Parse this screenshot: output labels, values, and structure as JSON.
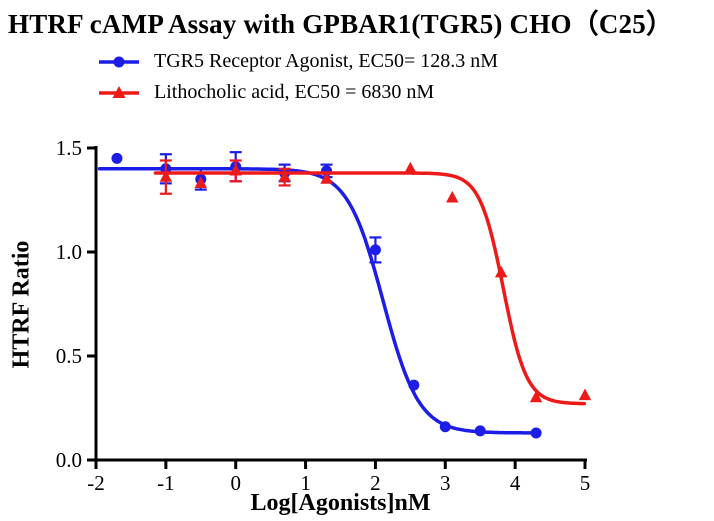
{
  "title": "HTRF cAMP Assay with GPBAR1(TGR5) CHO（C25）",
  "chart_data": {
    "type": "scatter",
    "title": "HTRF cAMP Assay with GPBAR1(TGR5) CHO（C25）",
    "xlabel": "Log[Agonists]nM",
    "ylabel": "HTRF Ratio",
    "xlim": [
      -2,
      5
    ],
    "ylim": [
      0,
      1.5
    ],
    "xticks": [
      -2,
      -1,
      0,
      1,
      2,
      3,
      4,
      5
    ],
    "yticks": [
      0,
      0.5,
      1,
      1.5
    ],
    "ytick_labels": [
      "0.0",
      "0.5",
      "1.0",
      "1.5"
    ],
    "grid": false,
    "legend_position": "top-left",
    "series": [
      {
        "name": "TGR5 Receptor Agonist, EC50= 128.3 nM",
        "ec50_nM": 128.3,
        "color": "#1d1de8",
        "marker": "circle",
        "points": [
          [
            -1.7,
            1.45,
            0
          ],
          [
            -1.0,
            1.4,
            0.07
          ],
          [
            -0.5,
            1.35,
            0.05
          ],
          [
            0.0,
            1.41,
            0.07
          ],
          [
            0.7,
            1.38,
            0.04
          ],
          [
            1.3,
            1.39,
            0.03
          ],
          [
            2.0,
            1.01,
            0.06
          ],
          [
            2.55,
            0.36,
            0
          ],
          [
            3.0,
            0.16,
            0
          ],
          [
            3.5,
            0.14,
            0
          ],
          [
            4.3,
            0.13,
            0
          ]
        ],
        "fit": {
          "top": 1.4,
          "bottom": 0.13,
          "log_ec50": 2.11,
          "hill": 1.7,
          "x_start": -1.95,
          "x_end": 4.35
        }
      },
      {
        "name": "Lithocholic acid, EC50 = 6830 nM",
        "ec50_nM": 6830,
        "color": "#ee1a1a",
        "marker": "triangle",
        "points": [
          [
            -1.0,
            1.36,
            0.08
          ],
          [
            -0.5,
            1.33,
            0
          ],
          [
            0.0,
            1.39,
            0.05
          ],
          [
            0.7,
            1.36,
            0.04
          ],
          [
            1.3,
            1.35,
            0
          ],
          [
            2.5,
            1.4,
            0
          ],
          [
            3.1,
            1.26,
            0
          ],
          [
            3.8,
            0.9,
            0
          ],
          [
            4.3,
            0.3,
            0
          ],
          [
            5.0,
            0.31,
            0
          ]
        ],
        "fit": {
          "top": 1.38,
          "bottom": 0.27,
          "log_ec50": 3.83,
          "hill": 2.6,
          "x_start": -1.15,
          "x_end": 5.0
        }
      }
    ]
  }
}
